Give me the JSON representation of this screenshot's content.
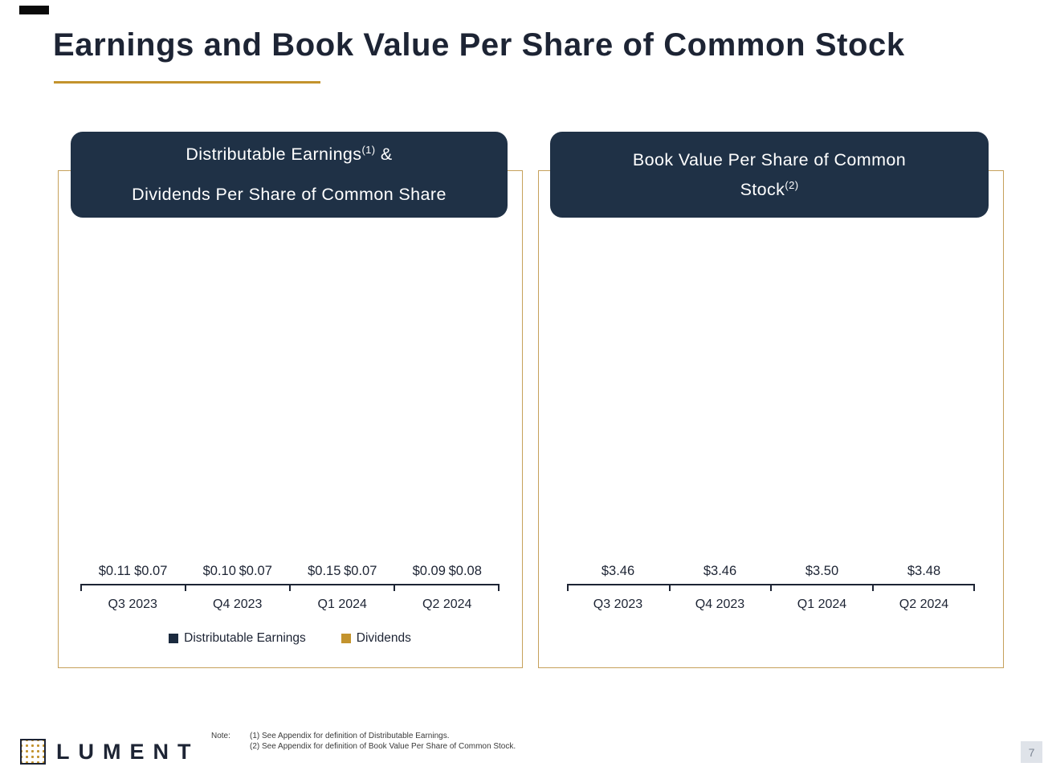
{
  "page": {
    "title": "Earnings and Book Value Per Share of Common Stock",
    "page_number": "7",
    "logo_text": "LUMENT",
    "note_label": "Note:",
    "notes": [
      "(1) See Appendix for definition of Distributable Earnings.",
      "(2) See Appendix for definition of Book Value Per Share of Common Stock."
    ]
  },
  "colors": {
    "navy_bar": "#1b2a3e",
    "gold_bar": "#c3932d",
    "pill_navy": "#1f3146",
    "panel_border_gold": "#c6a15b",
    "title_underline_gold": "#c3932d",
    "page_badge_bg": "#dfe3e9"
  },
  "left_panel": {
    "header": {
      "line1_text": "Distributable Earnings",
      "line1_sup": "(1)",
      "line1_suffix": " &",
      "line2_text": "Dividends Per Share of Common Share"
    }
  },
  "right_panel": {
    "header": {
      "line1_text": "Book Value Per Share of Common",
      "line2_text": "Stock",
      "line2_sup": "(2)"
    }
  },
  "chart_data": [
    {
      "type": "bar",
      "title": "Distributable Earnings(1) & Dividends Per Share of Common Share",
      "categories": [
        "Q3 2023",
        "Q4 2023",
        "Q1 2024",
        "Q2 2024"
      ],
      "series": [
        {
          "name": "Distributable Earnings",
          "values": [
            0.11,
            0.1,
            0.15,
            0.09
          ],
          "labels": [
            "$0.11",
            "$0.10",
            "$0.15",
            "$0.09"
          ],
          "color": "#1b2a3e"
        },
        {
          "name": "Dividends",
          "values": [
            0.07,
            0.07,
            0.07,
            0.08
          ],
          "labels": [
            "$0.07",
            "$0.07",
            "$0.07",
            "$0.08"
          ],
          "color": "#c3932d"
        }
      ],
      "ylim": [
        0,
        0.161
      ],
      "grid": false,
      "legend_position": "bottom"
    },
    {
      "type": "bar",
      "title": "Book Value Per Share of Common Stock(2)",
      "categories": [
        "Q3 2023",
        "Q4 2023",
        "Q1 2024",
        "Q2 2024"
      ],
      "series": [
        {
          "name": "Book Value Per Share",
          "values": [
            3.46,
            3.46,
            3.5,
            3.48
          ],
          "labels": [
            "$3.46",
            "$3.46",
            "$3.50",
            "$3.48"
          ],
          "color": "#1b2a3e"
        }
      ],
      "ylim": [
        3.3,
        3.52
      ],
      "grid": false,
      "legend_position": "none"
    }
  ]
}
